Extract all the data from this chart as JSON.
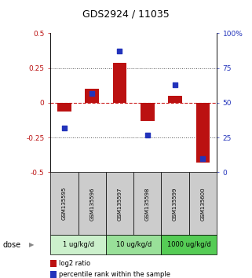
{
  "title": "GDS2924 / 11035",
  "samples": [
    "GSM135595",
    "GSM135596",
    "GSM135597",
    "GSM135598",
    "GSM135599",
    "GSM135600"
  ],
  "log2_ratio": [
    -0.06,
    0.1,
    0.29,
    -0.13,
    0.05,
    -0.43
  ],
  "percentile_rank": [
    32,
    57,
    87,
    27,
    63,
    10
  ],
  "doses": [
    {
      "label": "1 ug/kg/d",
      "color": "#ccf0cc",
      "start": 0,
      "end": 2
    },
    {
      "label": "10 ug/kg/d",
      "color": "#99e099",
      "start": 2,
      "end": 4
    },
    {
      "label": "1000 ug/kg/d",
      "color": "#55cc55",
      "start": 4,
      "end": 6
    }
  ],
  "bar_color": "#bb1111",
  "dot_color": "#2233bb",
  "left_ylim": [
    -0.5,
    0.5
  ],
  "right_ylim": [
    0,
    100
  ],
  "left_yticks": [
    -0.5,
    -0.25,
    0,
    0.25,
    0.5
  ],
  "left_yticklabels": [
    "-0.5",
    "-0.25",
    "0",
    "0.25",
    "0.5"
  ],
  "right_yticks": [
    0,
    25,
    50,
    75,
    100
  ],
  "right_yticklabels": [
    "0",
    "25",
    "50",
    "75",
    "100%"
  ],
  "hline_zero_color": "#cc2222",
  "hline_dotted_color": "#555555",
  "sample_bg_color": "#cccccc",
  "legend_red_label": "log2 ratio",
  "legend_blue_label": "percentile rank within the sample",
  "dose_label": "dose"
}
